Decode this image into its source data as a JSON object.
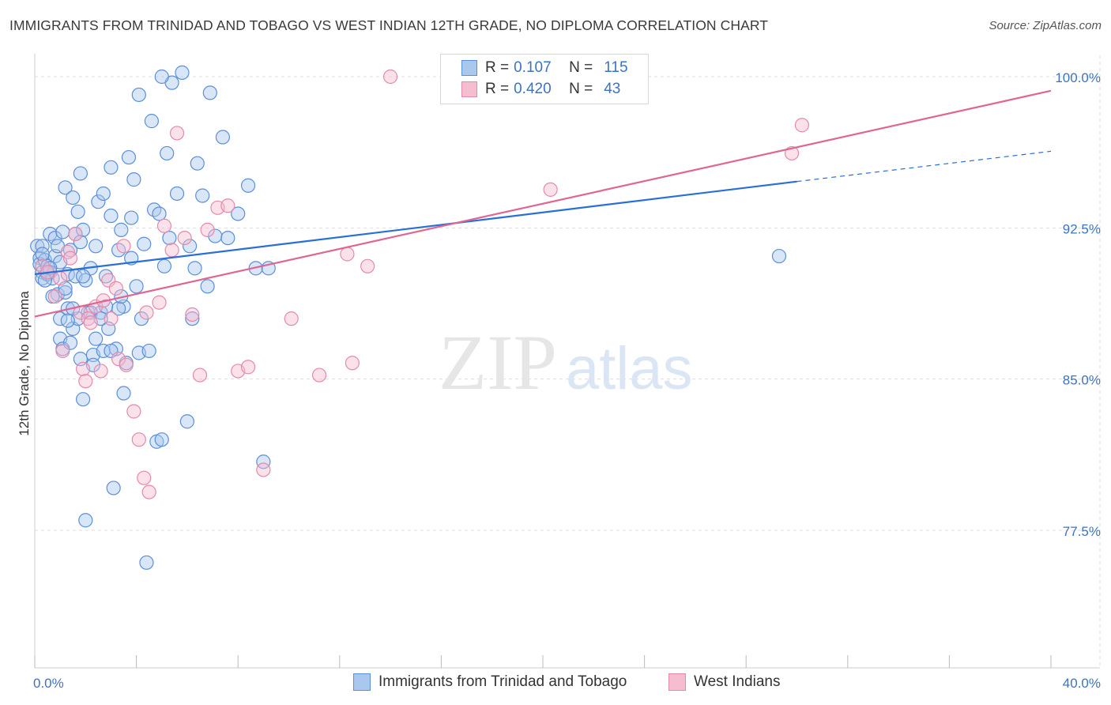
{
  "title": "IMMIGRANTS FROM TRINIDAD AND TOBAGO VS WEST INDIAN 12TH GRADE, NO DIPLOMA CORRELATION CHART",
  "source": "Source: ZipAtlas.com",
  "watermark": {
    "zip": "ZIP",
    "atlas": "atlas"
  },
  "legend": {
    "r_label": "R =",
    "n_label": "N =",
    "rows": [
      {
        "r": "0.107",
        "n": "115"
      },
      {
        "r": "0.420",
        "n": "43"
      }
    ]
  },
  "colors": {
    "blue_fill": "#aac8ee",
    "blue_stroke": "#5b8fd8",
    "blue_line": "#2a6fd6",
    "pink_fill": "#f6bcd0",
    "pink_stroke": "#e48aaa",
    "pink_line": "#e06692",
    "grid": "#dddddd",
    "tick_label": "#3b73c4"
  },
  "chart_data": {
    "type": "scatter",
    "title": "IMMIGRANTS FROM TRINIDAD AND TOBAGO VS WEST INDIAN 12TH GRADE, NO DIPLOMA CORRELATION CHART",
    "xlabel": "",
    "ylabel": "12th Grade, No Diploma",
    "xlim": [
      0,
      40
    ],
    "ylim": [
      70.0,
      101.0
    ],
    "x_tick_labels": [
      "0.0%",
      "40.0%"
    ],
    "y_ticks": [
      77.5,
      85.0,
      92.5,
      100.0
    ],
    "y_tick_labels": [
      "77.5%",
      "85.0%",
      "92.5%",
      "100.0%"
    ],
    "grid": true,
    "legend_position": "bottom",
    "series": [
      {
        "name": "Immigrants from Trinidad and Tobago",
        "color": "#5b8fd8",
        "trend": {
          "x": [
            0.0,
            30.0
          ],
          "y": [
            90.2,
            94.8
          ],
          "dashed_extension": {
            "x": [
              30.0,
              40.0
            ],
            "y": [
              94.8,
              96.3
            ]
          }
        },
        "points": [
          [
            0.1,
            91.6
          ],
          [
            0.2,
            91.0
          ],
          [
            0.2,
            90.7
          ],
          [
            0.3,
            91.6
          ],
          [
            0.3,
            90.3
          ],
          [
            0.3,
            90.0
          ],
          [
            0.4,
            90.9
          ],
          [
            0.5,
            90.6
          ],
          [
            0.5,
            90.2
          ],
          [
            0.6,
            92.2
          ],
          [
            0.6,
            90.3
          ],
          [
            0.7,
            90.0
          ],
          [
            0.8,
            92.0
          ],
          [
            0.8,
            91.1
          ],
          [
            0.9,
            91.6
          ],
          [
            0.9,
            89.2
          ],
          [
            1.0,
            88.0
          ],
          [
            1.0,
            87.0
          ],
          [
            1.1,
            86.5
          ],
          [
            1.1,
            92.3
          ],
          [
            1.2,
            94.5
          ],
          [
            1.2,
            89.3
          ],
          [
            1.3,
            90.2
          ],
          [
            1.3,
            88.5
          ],
          [
            1.4,
            91.4
          ],
          [
            1.4,
            86.8
          ],
          [
            1.5,
            94.0
          ],
          [
            1.5,
            87.5
          ],
          [
            1.6,
            92.2
          ],
          [
            1.6,
            90.1
          ],
          [
            1.7,
            93.3
          ],
          [
            1.7,
            88.0
          ],
          [
            1.8,
            95.2
          ],
          [
            1.8,
            86.0
          ],
          [
            1.9,
            92.4
          ],
          [
            1.9,
            84.0
          ],
          [
            2.0,
            89.9
          ],
          [
            2.1,
            88.3
          ],
          [
            2.2,
            90.5
          ],
          [
            2.3,
            86.2
          ],
          [
            2.3,
            85.7
          ],
          [
            2.4,
            91.6
          ],
          [
            2.4,
            87.0
          ],
          [
            2.5,
            93.8
          ],
          [
            2.6,
            88.3
          ],
          [
            2.7,
            94.2
          ],
          [
            2.7,
            86.4
          ],
          [
            2.8,
            90.1
          ],
          [
            2.9,
            87.5
          ],
          [
            3.0,
            95.5
          ],
          [
            3.0,
            93.1
          ],
          [
            3.1,
            79.6
          ],
          [
            3.2,
            86.5
          ],
          [
            3.3,
            91.4
          ],
          [
            3.4,
            92.4
          ],
          [
            3.5,
            84.3
          ],
          [
            3.5,
            88.6
          ],
          [
            3.6,
            85.8
          ],
          [
            3.7,
            96.0
          ],
          [
            3.8,
            93.0
          ],
          [
            3.8,
            91.0
          ],
          [
            3.9,
            94.9
          ],
          [
            4.0,
            89.6
          ],
          [
            4.1,
            86.3
          ],
          [
            4.1,
            99.1
          ],
          [
            4.2,
            88.0
          ],
          [
            4.3,
            91.7
          ],
          [
            4.4,
            75.9
          ],
          [
            4.5,
            86.4
          ],
          [
            4.6,
            97.8
          ],
          [
            4.7,
            93.4
          ],
          [
            4.8,
            81.9
          ],
          [
            4.9,
            93.2
          ],
          [
            5.0,
            82.0
          ],
          [
            5.1,
            90.6
          ],
          [
            5.2,
            96.2
          ],
          [
            5.3,
            92.0
          ],
          [
            5.4,
            99.7
          ],
          [
            5.6,
            94.2
          ],
          [
            5.8,
            100.2
          ],
          [
            6.0,
            82.9
          ],
          [
            6.1,
            91.6
          ],
          [
            6.2,
            88.0
          ],
          [
            6.3,
            90.5
          ],
          [
            6.4,
            95.7
          ],
          [
            6.6,
            94.1
          ],
          [
            6.8,
            89.6
          ],
          [
            6.9,
            99.2
          ],
          [
            7.1,
            92.1
          ],
          [
            7.4,
            97.0
          ],
          [
            7.6,
            92.0
          ],
          [
            8.0,
            93.2
          ],
          [
            8.4,
            94.6
          ],
          [
            8.7,
            90.5
          ],
          [
            9.0,
            80.9
          ],
          [
            9.2,
            90.5
          ],
          [
            29.3,
            91.1
          ],
          [
            0.4,
            89.9
          ],
          [
            0.7,
            89.1
          ],
          [
            1.0,
            90.8
          ],
          [
            1.3,
            87.9
          ],
          [
            1.5,
            88.5
          ],
          [
            1.9,
            90.1
          ],
          [
            2.2,
            88.3
          ],
          [
            2.6,
            88.0
          ],
          [
            3.0,
            86.4
          ],
          [
            3.3,
            88.5
          ],
          [
            1.2,
            89.5
          ],
          [
            0.6,
            90.5
          ],
          [
            1.8,
            91.8
          ],
          [
            2.0,
            78.0
          ],
          [
            2.8,
            88.6
          ],
          [
            3.4,
            89.1
          ],
          [
            0.3,
            91.2
          ],
          [
            5.0,
            100.0
          ]
        ]
      },
      {
        "name": "West Indians",
        "color": "#e48aaa",
        "trend": {
          "x": [
            0.0,
            40.0
          ],
          "y": [
            88.1,
            99.3
          ]
        },
        "points": [
          [
            0.3,
            90.6
          ],
          [
            0.5,
            90.3
          ],
          [
            0.8,
            89.1
          ],
          [
            1.0,
            90.0
          ],
          [
            1.1,
            86.4
          ],
          [
            1.3,
            91.3
          ],
          [
            1.4,
            91.0
          ],
          [
            1.6,
            92.2
          ],
          [
            1.8,
            88.3
          ],
          [
            1.9,
            85.5
          ],
          [
            2.0,
            84.9
          ],
          [
            2.1,
            88.0
          ],
          [
            2.2,
            87.8
          ],
          [
            2.4,
            88.6
          ],
          [
            2.6,
            85.4
          ],
          [
            2.7,
            88.9
          ],
          [
            2.9,
            89.9
          ],
          [
            3.0,
            88.0
          ],
          [
            3.2,
            89.5
          ],
          [
            3.3,
            86.0
          ],
          [
            3.5,
            91.6
          ],
          [
            3.6,
            85.7
          ],
          [
            3.9,
            83.4
          ],
          [
            4.1,
            82.0
          ],
          [
            4.3,
            80.1
          ],
          [
            4.5,
            79.4
          ],
          [
            4.9,
            88.8
          ],
          [
            5.1,
            92.6
          ],
          [
            5.4,
            91.4
          ],
          [
            5.6,
            97.2
          ],
          [
            5.9,
            92.0
          ],
          [
            6.2,
            88.2
          ],
          [
            6.5,
            85.2
          ],
          [
            6.8,
            92.4
          ],
          [
            7.2,
            93.5
          ],
          [
            7.6,
            93.6
          ],
          [
            8.0,
            85.4
          ],
          [
            8.4,
            85.6
          ],
          [
            9.0,
            80.5
          ],
          [
            10.1,
            88.0
          ],
          [
            11.2,
            85.2
          ],
          [
            12.3,
            91.2
          ],
          [
            14.0,
            100.0
          ]
        ]
      }
    ]
  },
  "extra_pink_points": [
    [
      13.1,
      90.6
    ],
    [
      12.5,
      85.8
    ],
    [
      20.3,
      94.4
    ],
    [
      29.8,
      96.2
    ],
    [
      30.2,
      97.6
    ],
    [
      4.4,
      88.3
    ]
  ]
}
